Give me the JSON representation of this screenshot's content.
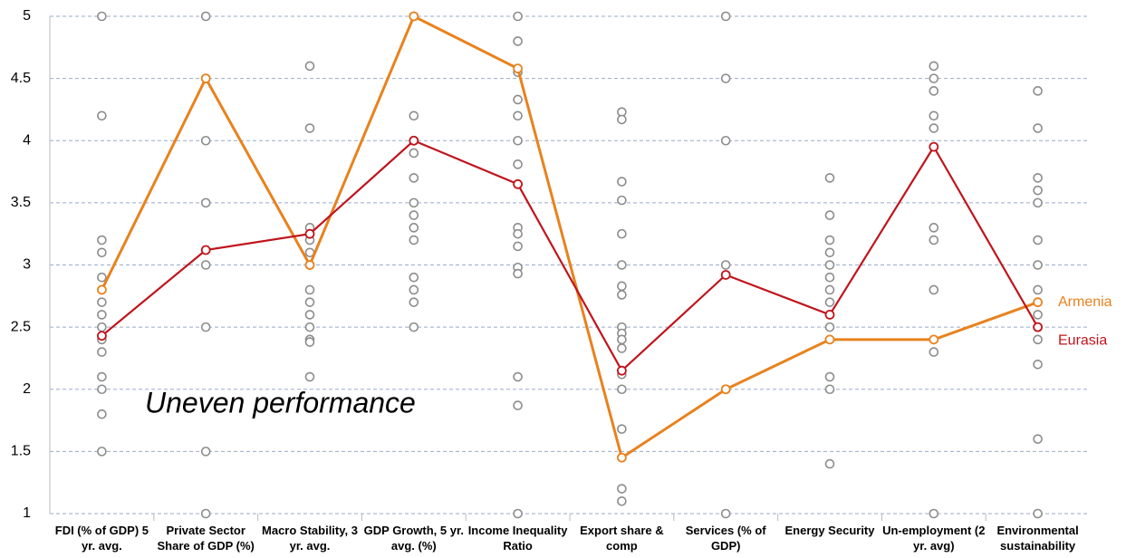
{
  "chart_data": {
    "type": "line",
    "categories": [
      "FDI (% of GDP) 5 yr. avg.",
      "Private Sector Share of GDP (%)",
      "Macro Stability, 3 yr. avg.",
      "GDP Growth, 5 yr. avg. (%)",
      "Income Inequality Ratio",
      "Export share & comp",
      "Services (% of GDP)",
      "Energy Security",
      "Un-employment (2 yr. avg)",
      "Environmental sustainability"
    ],
    "series": [
      {
        "name": "Armenia",
        "color": "#e8821e",
        "values": [
          2.8,
          4.5,
          3.0,
          5.0,
          4.58,
          1.45,
          2.0,
          2.4,
          2.4,
          2.7
        ]
      },
      {
        "name": "Eurasia",
        "color": "#c0141c",
        "values": [
          2.43,
          3.12,
          3.25,
          4.0,
          3.65,
          2.15,
          2.92,
          2.6,
          3.95,
          2.5
        ]
      }
    ],
    "dots_color": "#8c8c8c",
    "dots": [
      [
        5,
        4.2,
        3.2,
        3.1,
        2.9,
        2.7,
        2.6,
        2.5,
        2.4,
        2.3,
        2.1,
        2.0,
        1.8,
        1.5
      ],
      [
        5,
        4.5,
        4.0,
        3.5,
        3.0,
        2.5,
        1.5,
        1.0
      ],
      [
        4.6,
        4.1,
        3.3,
        3.2,
        3.1,
        3.0,
        2.8,
        2.7,
        2.6,
        2.5,
        2.4,
        2.38,
        2.1
      ],
      [
        5.0,
        4.2,
        4.0,
        3.9,
        3.7,
        3.5,
        3.4,
        3.3,
        3.2,
        2.9,
        2.8,
        2.7,
        2.5
      ],
      [
        5.0,
        4.8,
        4.55,
        4.33,
        4.2,
        4.0,
        3.81,
        3.3,
        3.25,
        3.15,
        2.98,
        2.93,
        2.1,
        1.87,
        1.0
      ],
      [
        4.23,
        4.17,
        3.67,
        3.52,
        3.25,
        3.0,
        2.83,
        2.76,
        2.5,
        2.45,
        2.4,
        2.33,
        2.12,
        2.0,
        1.68,
        1.2,
        1.1
      ],
      [
        5.0,
        4.5,
        4.0,
        3.0,
        2.0,
        1.0
      ],
      [
        3.7,
        3.4,
        3.2,
        3.1,
        3.0,
        2.9,
        2.8,
        2.7,
        2.5,
        2.1,
        2.0,
        1.4
      ],
      [
        4.6,
        4.5,
        4.4,
        4.2,
        4.1,
        3.3,
        3.2,
        2.8,
        2.3,
        1.0
      ],
      [
        4.4,
        4.1,
        3.7,
        3.6,
        3.5,
        3.2,
        3.0,
        2.8,
        2.6,
        2.4,
        2.2,
        1.6,
        1.0
      ]
    ],
    "annotation": "Uneven performance",
    "ylim": [
      1,
      5
    ],
    "yticks": [
      1,
      1.5,
      2,
      2.5,
      3,
      3.5,
      4,
      4.5,
      5
    ],
    "grid": true
  }
}
